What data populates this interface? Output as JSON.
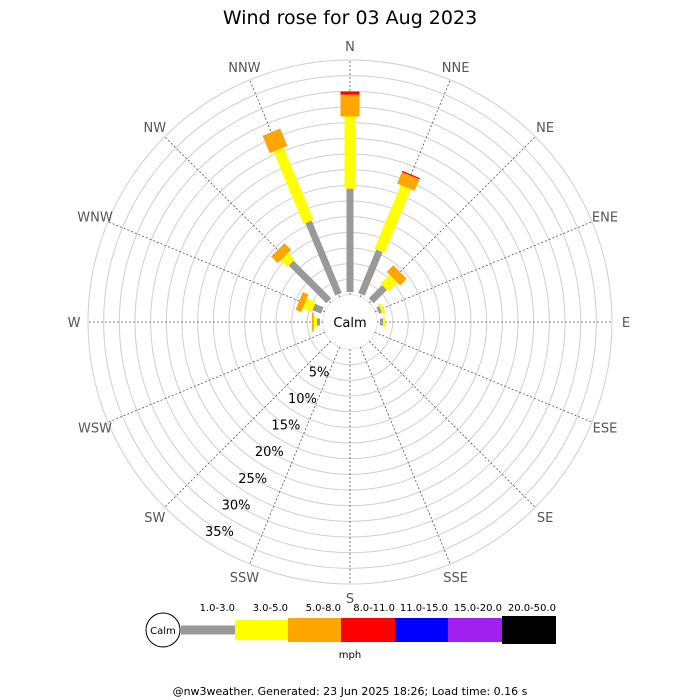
{
  "title": "Wind rose for 03 Aug 2023",
  "footer": "@nw3weather. Generated: 23 Jun 2025 18:26; Load time: 0.16 s",
  "calm_label": "Calm",
  "directions": [
    "N",
    "NNE",
    "NE",
    "ENE",
    "E",
    "ESE",
    "SE",
    "SSE",
    "S",
    "SSW",
    "SW",
    "WSW",
    "W",
    "WNW",
    "NW",
    "NNW"
  ],
  "rings": [
    "5%",
    "10%",
    "15%",
    "20%",
    "25%",
    "30%",
    "35%"
  ],
  "legend": {
    "calm_label": "Calm",
    "units": "mph",
    "bins": [
      {
        "label": "1.0-3.0",
        "color": "#999999"
      },
      {
        "label": "3.0-5.0",
        "color": "#ffff00"
      },
      {
        "label": "5.0-8.0",
        "color": "#ffa500"
      },
      {
        "label": "8.0-11.0",
        "color": "#ff0000"
      },
      {
        "label": "11.0-15.0",
        "color": "#0000ff"
      },
      {
        "label": "15.0-20.0",
        "color": "#a020f0"
      },
      {
        "label": "20.0-50.0",
        "color": "#000000"
      }
    ]
  },
  "chart_data": {
    "type": "wind_rose",
    "title": "Wind rose for 03 Aug 2023",
    "units": "mph",
    "radial_max_percent": 37.5,
    "radial_ticks": [
      5,
      10,
      15,
      20,
      25,
      30,
      35
    ],
    "bins": [
      "1.0-3.0",
      "3.0-5.0",
      "5.0-8.0",
      "8.0-11.0",
      "11.0-15.0",
      "15.0-20.0",
      "20.0-50.0"
    ],
    "series": [
      {
        "direction": "N",
        "values": [
          16.5,
          11.5,
          3.5,
          0.5,
          0,
          0,
          0
        ]
      },
      {
        "direction": "NNE",
        "values": [
          7.5,
          11.0,
          2.0,
          0.2,
          0,
          0,
          0
        ]
      },
      {
        "direction": "NE",
        "values": [
          3.0,
          2.0,
          1.5,
          0,
          0,
          0,
          0
        ]
      },
      {
        "direction": "ENE",
        "values": [
          0.5,
          0.5,
          0,
          0,
          0,
          0,
          0
        ]
      },
      {
        "direction": "E",
        "values": [
          0.5,
          0.3,
          0,
          0,
          0,
          0,
          0
        ]
      },
      {
        "direction": "ESE",
        "values": [
          0,
          0,
          0,
          0,
          0,
          0,
          0
        ]
      },
      {
        "direction": "SE",
        "values": [
          0,
          0,
          0,
          0,
          0,
          0,
          0
        ]
      },
      {
        "direction": "SSE",
        "values": [
          0,
          0,
          0,
          0,
          0,
          0,
          0
        ]
      },
      {
        "direction": "S",
        "values": [
          0,
          0,
          0,
          0,
          0,
          0,
          0
        ]
      },
      {
        "direction": "SSW",
        "values": [
          0,
          0,
          0,
          0,
          0,
          0,
          0
        ]
      },
      {
        "direction": "SW",
        "values": [
          0,
          0,
          0,
          0,
          0,
          0,
          0
        ]
      },
      {
        "direction": "WSW",
        "values": [
          0,
          0,
          0,
          0,
          0,
          0,
          0
        ]
      },
      {
        "direction": "W",
        "values": [
          0.5,
          0.5,
          0.3,
          0,
          0,
          0,
          0
        ]
      },
      {
        "direction": "WNW",
        "values": [
          1.5,
          1.5,
          1.0,
          0,
          0,
          0,
          0
        ]
      },
      {
        "direction": "NW",
        "values": [
          8.5,
          1.5,
          1.5,
          0,
          0,
          0,
          0
        ]
      },
      {
        "direction": "NNW",
        "values": [
          12.5,
          12.5,
          3.0,
          0,
          0,
          0,
          0
        ]
      }
    ]
  }
}
